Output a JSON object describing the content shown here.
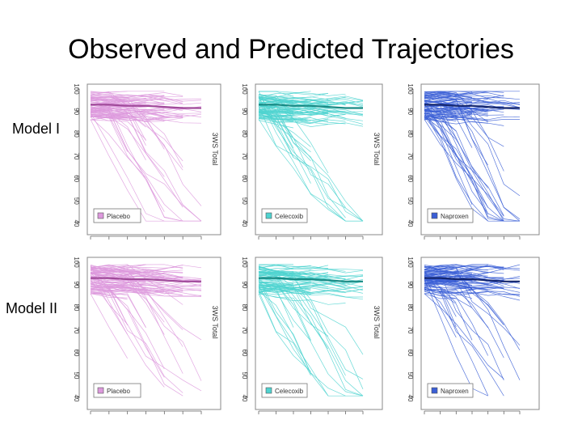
{
  "slide": {
    "title": "Observed and Predicted Trajectories",
    "row_labels": [
      "Model I",
      "Model II"
    ]
  },
  "chart_data": [
    {
      "type": "line",
      "model": "Model I",
      "legend": "Placebo",
      "color": "#dd99dd",
      "mean_color": "#a04a9a",
      "ylabel": "3WS Total",
      "y_ticks": [
        40,
        50,
        60,
        70,
        80,
        90,
        100
      ],
      "ylim": [
        40,
        100
      ],
      "x": [
        0,
        1,
        2,
        3,
        4,
        5,
        6
      ],
      "mean": [
        93,
        93,
        92.5,
        92.5,
        92,
        91.5,
        91.5
      ]
    },
    {
      "type": "line",
      "model": "Model I",
      "legend": "Celecoxib",
      "color": "#4fd3d0",
      "mean_color": "#188a84",
      "ylabel": "3WS Total",
      "y_ticks": [
        40,
        50,
        60,
        70,
        80,
        90,
        100
      ],
      "ylim": [
        40,
        100
      ],
      "x": [
        0,
        1,
        2,
        3,
        4,
        5,
        6
      ],
      "mean": [
        93,
        93,
        92.5,
        92.5,
        92,
        91.5,
        91.5
      ]
    },
    {
      "type": "line",
      "model": "Model I",
      "legend": "Naproxen",
      "color": "#3b5fd6",
      "mean_color": "#14266e",
      "ylabel": "3WS Total",
      "y_ticks": [
        40,
        50,
        60,
        70,
        80,
        90,
        100
      ],
      "ylim": [
        40,
        100
      ],
      "x": [
        0,
        1,
        2,
        3,
        4,
        5,
        6
      ],
      "mean": [
        93,
        93,
        92.5,
        92.5,
        92,
        91.5,
        91.5
      ]
    },
    {
      "type": "line",
      "model": "Model II",
      "legend": "Placebo",
      "color": "#dd99dd",
      "mean_color": "#a04a9a",
      "ylabel": "3WS Total",
      "y_ticks": [
        40,
        50,
        60,
        70,
        80,
        90,
        100
      ],
      "ylim": [
        40,
        100
      ],
      "x": [
        0,
        1,
        2,
        3,
        4,
        5,
        6
      ],
      "mean": [
        93,
        93,
        92.5,
        92.5,
        92,
        91.5,
        91.5
      ]
    },
    {
      "type": "line",
      "model": "Model II",
      "legend": "Celecoxib",
      "color": "#4fd3d0",
      "mean_color": "#188a84",
      "ylabel": "3WS Total",
      "y_ticks": [
        40,
        50,
        60,
        70,
        80,
        90,
        100
      ],
      "ylim": [
        40,
        100
      ],
      "x": [
        0,
        1,
        2,
        3,
        4,
        5,
        6
      ],
      "mean": [
        93,
        93,
        92.5,
        92.5,
        92,
        91.5,
        91.5
      ]
    },
    {
      "type": "line",
      "model": "Model II",
      "legend": "Naproxen",
      "color": "#3b5fd6",
      "mean_color": "#14266e",
      "ylabel": "3WS Total",
      "y_ticks": [
        40,
        50,
        60,
        70,
        80,
        90,
        100
      ],
      "ylim": [
        40,
        100
      ],
      "x": [
        0,
        1,
        2,
        3,
        4,
        5,
        6
      ],
      "mean": [
        93,
        93,
        92.5,
        92.5,
        92,
        91.5,
        91.5
      ]
    }
  ]
}
